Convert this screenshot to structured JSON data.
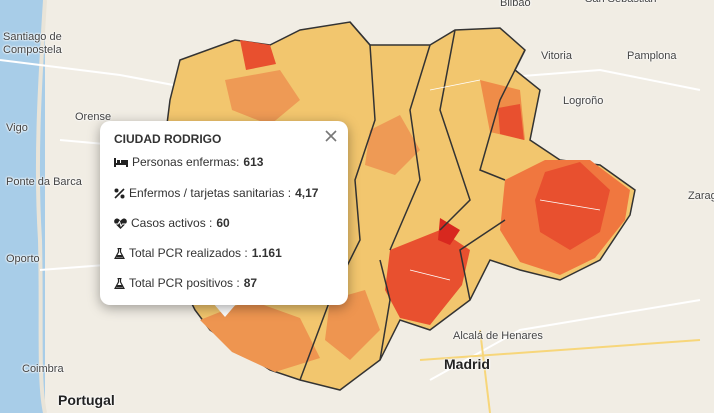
{
  "map": {
    "places": [
      {
        "label": "Bilbao"
      },
      {
        "label": "San Sebastián"
      },
      {
        "label": "Santiago de Compostela"
      },
      {
        "label": "Vitoria"
      },
      {
        "label": "Pamplona"
      },
      {
        "label": "Orense"
      },
      {
        "label": "Logroño"
      },
      {
        "label": "Vigo"
      },
      {
        "label": "Ponte da Barca"
      },
      {
        "label": "Zaragoza"
      },
      {
        "label": "Oporto"
      },
      {
        "label": "Alcalá de Henares"
      },
      {
        "label": "Madrid"
      },
      {
        "label": "Coimbra"
      },
      {
        "label": "Portugal"
      }
    ]
  },
  "popup": {
    "title": "CIUDAD RODRIGO",
    "rows": [
      {
        "label": "Personas enfermas:",
        "value": "613"
      },
      {
        "label": "Enfermos / tarjetas sanitarias :",
        "value": "4,17"
      },
      {
        "label": "Casos activos :",
        "value": "60"
      },
      {
        "label": "Total PCR realizados :",
        "value": "1.161"
      },
      {
        "label": "Total PCR positivos :",
        "value": "87"
      }
    ]
  }
}
